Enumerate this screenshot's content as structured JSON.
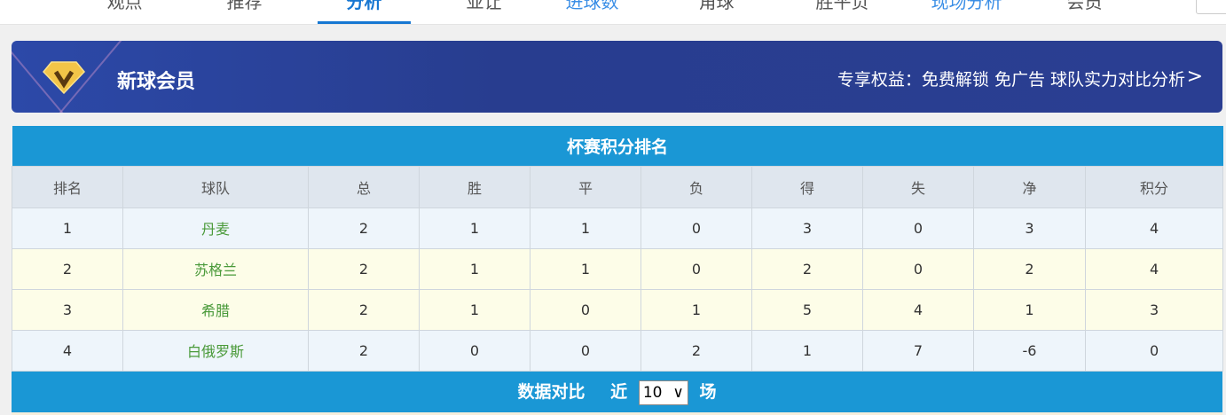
{
  "nav": {
    "items": [
      {
        "label": "观点"
      },
      {
        "label": "推荐"
      },
      {
        "label": "分析",
        "active": true
      },
      {
        "label": "亚让"
      },
      {
        "label": "进球数"
      },
      {
        "label": "角球"
      },
      {
        "label": "胜平负"
      },
      {
        "label": "现场分析"
      },
      {
        "label": "会员"
      }
    ]
  },
  "banner": {
    "title": "新球会员",
    "benefits": "专享权益：免费解锁 免广告 球队实力对比分析",
    "icon": "diamond-v-icon"
  },
  "standings": {
    "title": "杯赛积分排名",
    "headers": [
      "排名",
      "球队",
      "总",
      "胜",
      "平",
      "负",
      "得",
      "失",
      "净",
      "积分"
    ],
    "rows": [
      [
        "1",
        "丹麦",
        "2",
        "1",
        "1",
        "0",
        "3",
        "0",
        "3",
        "4"
      ],
      [
        "2",
        "苏格兰",
        "2",
        "1",
        "1",
        "0",
        "2",
        "0",
        "2",
        "4"
      ],
      [
        "3",
        "希腊",
        "2",
        "1",
        "0",
        "1",
        "5",
        "4",
        "1",
        "3"
      ],
      [
        "4",
        "白俄罗斯",
        "2",
        "0",
        "0",
        "2",
        "1",
        "7",
        "-6",
        "0"
      ]
    ]
  },
  "compare": {
    "title": "数据对比",
    "prefix": "近",
    "selected": "10",
    "suffix": "场"
  },
  "colors": {
    "header_blue": "#1a97d5",
    "active_nav": "#1677d2",
    "team_green": "#4a9a3a"
  }
}
